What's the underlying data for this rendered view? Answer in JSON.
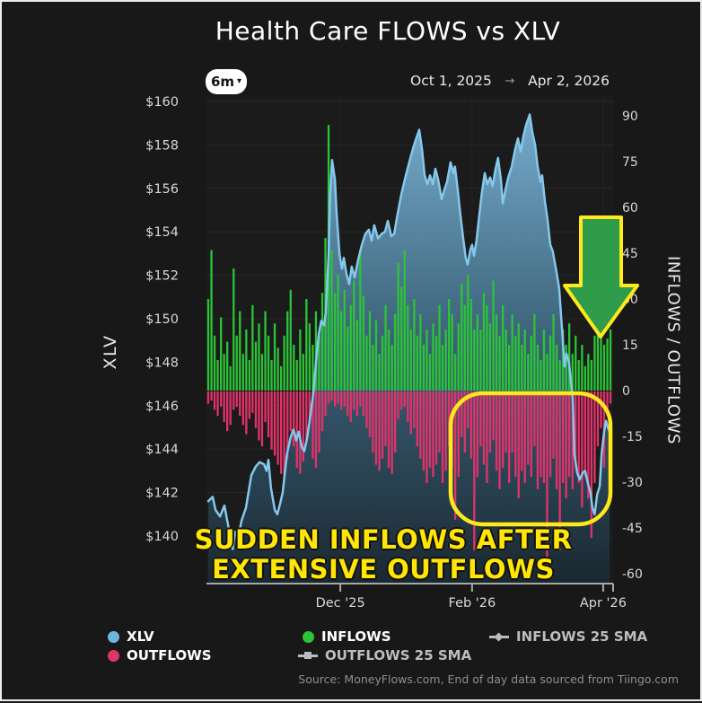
{
  "title": "Health Care FLOWS vs XLV",
  "controls": {
    "range_label": "6m",
    "caret": "▾",
    "date_start": "Oct 1, 2025",
    "date_arrow": "→",
    "date_end": "Apr 2, 2026"
  },
  "chart_data": {
    "type": "combo",
    "title": "Health Care FLOWS vs XLV",
    "x_axis": {
      "start_label": "Oct 1, 2025",
      "end_label": "Apr 2, 2026",
      "n_days": 128,
      "ticks": [
        {
          "label": "Dec '25",
          "day": 41.7
        },
        {
          "label": "Feb '26",
          "day": 83.3
        },
        {
          "label": "Apr '26",
          "day": 124.7
        }
      ]
    },
    "price_axis": {
      "title": "XLV",
      "side": "left",
      "min": 140,
      "max": 160,
      "step": 2,
      "ticks": [
        {
          "label": "$160",
          "value": 160
        },
        {
          "label": "$158",
          "value": 158
        },
        {
          "label": "$156",
          "value": 156
        },
        {
          "label": "$154",
          "value": 154
        },
        {
          "label": "$152",
          "value": 152
        },
        {
          "label": "$150",
          "value": 150
        },
        {
          "label": "$148",
          "value": 148
        },
        {
          "label": "$146",
          "value": 146
        },
        {
          "label": "$144",
          "value": 144
        },
        {
          "label": "$142",
          "value": 142
        },
        {
          "label": "$140",
          "value": 140
        }
      ]
    },
    "flow_axis": {
      "title": "INFLOWS / OUTFLOWS",
      "side": "right",
      "min": -60,
      "max": 90,
      "step": 15,
      "ticks": [
        {
          "label": "90",
          "value": 90
        },
        {
          "label": "75",
          "value": 75
        },
        {
          "label": "60",
          "value": 60
        },
        {
          "label": "45",
          "value": 45
        },
        {
          "label": "30",
          "value": 30
        },
        {
          "label": "15",
          "value": 15
        },
        {
          "label": "0",
          "value": 0
        },
        {
          "label": "-15",
          "value": -15
        },
        {
          "label": "-30",
          "value": -30
        },
        {
          "label": "-45",
          "value": -45
        },
        {
          "label": "-60",
          "value": -60
        }
      ]
    },
    "series": [
      {
        "name": "XLV",
        "type": "area-line",
        "color": "#85c8ec",
        "points": [
          [
            0,
            141.6
          ],
          [
            1.4,
            141.8
          ],
          [
            2.3,
            141.2
          ],
          [
            3.7,
            140.9
          ],
          [
            5.1,
            141.4
          ],
          [
            6,
            140.7
          ],
          [
            7.7,
            139.4
          ],
          [
            8.5,
            140.2
          ],
          [
            9.4,
            139.9
          ],
          [
            10.5,
            140.7
          ],
          [
            11.9,
            141.3
          ],
          [
            13.6,
            142.8
          ],
          [
            15,
            143.2
          ],
          [
            16.2,
            143.4
          ],
          [
            17.6,
            143.3
          ],
          [
            18.4,
            143.0
          ],
          [
            19,
            143.5
          ],
          [
            19.8,
            142.2
          ],
          [
            21,
            141.2
          ],
          [
            21.8,
            141.0
          ],
          [
            22.7,
            141.5
          ],
          [
            23.5,
            142.0
          ],
          [
            24.9,
            143.8
          ],
          [
            26.1,
            144.6
          ],
          [
            26.9,
            144.9
          ],
          [
            27.8,
            144.4
          ],
          [
            28.6,
            144.8
          ],
          [
            29.5,
            144.1
          ],
          [
            30.3,
            143.9
          ],
          [
            31.2,
            144.5
          ],
          [
            32,
            145.3
          ],
          [
            33.2,
            146.6
          ],
          [
            34,
            148.0
          ],
          [
            34.9,
            149.3
          ],
          [
            35.7,
            149.9
          ],
          [
            36.6,
            149.7
          ],
          [
            37.1,
            150.3
          ],
          [
            38,
            153.0
          ],
          [
            38.5,
            155.8
          ],
          [
            39.1,
            157.3
          ],
          [
            40,
            156.4
          ],
          [
            40.5,
            154.9
          ],
          [
            41.4,
            153.0
          ],
          [
            42.2,
            152.3
          ],
          [
            42.8,
            152.8
          ],
          [
            43.6,
            152.1
          ],
          [
            44.5,
            151.6
          ],
          [
            45.3,
            152.4
          ],
          [
            46.2,
            151.9
          ],
          [
            47.3,
            152.7
          ],
          [
            48.5,
            153.4
          ],
          [
            49.6,
            153.9
          ],
          [
            50.7,
            154.1
          ],
          [
            51.6,
            153.6
          ],
          [
            52.4,
            154.3
          ],
          [
            53.6,
            153.7
          ],
          [
            54.7,
            153.9
          ],
          [
            55.8,
            154.0
          ],
          [
            56.7,
            154.5
          ],
          [
            57.8,
            153.8
          ],
          [
            58.7,
            153.9
          ],
          [
            59.5,
            154.6
          ],
          [
            60.9,
            155.7
          ],
          [
            62.4,
            156.6
          ],
          [
            63.8,
            157.4
          ],
          [
            65.2,
            158.1
          ],
          [
            66.6,
            158.7
          ],
          [
            67.5,
            157.8
          ],
          [
            68.3,
            156.6
          ],
          [
            69.2,
            156.2
          ],
          [
            70,
            156.6
          ],
          [
            70.9,
            156.2
          ],
          [
            71.7,
            156.9
          ],
          [
            72.6,
            156.4
          ],
          [
            73.7,
            155.5
          ],
          [
            74.5,
            155.9
          ],
          [
            75.4,
            156.3
          ],
          [
            76.5,
            157.2
          ],
          [
            77.4,
            156.7
          ],
          [
            77.9,
            157.0
          ],
          [
            78.8,
            155.9
          ],
          [
            79.6,
            154.8
          ],
          [
            80.5,
            153.7
          ],
          [
            81.3,
            152.8
          ],
          [
            81.9,
            152.5
          ],
          [
            82.8,
            153.2
          ],
          [
            83.3,
            153.4
          ],
          [
            83.9,
            152.9
          ],
          [
            84.7,
            153.6
          ],
          [
            85.6,
            154.8
          ],
          [
            86.4,
            155.8
          ],
          [
            87.3,
            156.7
          ],
          [
            88.1,
            156.2
          ],
          [
            89,
            156.5
          ],
          [
            89.8,
            156.1
          ],
          [
            90.7,
            156.9
          ],
          [
            91.5,
            157.4
          ],
          [
            92.4,
            156.4
          ],
          [
            93,
            155.3
          ],
          [
            93.8,
            155.9
          ],
          [
            94.7,
            156.5
          ],
          [
            95.8,
            157.0
          ],
          [
            96.9,
            157.8
          ],
          [
            97.8,
            158.3
          ],
          [
            98.6,
            157.7
          ],
          [
            99.5,
            158.4
          ],
          [
            100.3,
            158.9
          ],
          [
            101.5,
            159.4
          ],
          [
            102.3,
            158.6
          ],
          [
            103.2,
            158.0
          ],
          [
            104,
            157.0
          ],
          [
            104.9,
            156.3
          ],
          [
            105.4,
            156.6
          ],
          [
            106.3,
            155.4
          ],
          [
            107.1,
            154.6
          ],
          [
            108,
            153.4
          ],
          [
            108.8,
            153.1
          ],
          [
            110,
            152.1
          ],
          [
            110.8,
            151.4
          ],
          [
            111.7,
            149.5
          ],
          [
            112.5,
            147.8
          ],
          [
            113.1,
            148.4
          ],
          [
            113.9,
            148.0
          ],
          [
            114.5,
            147.1
          ],
          [
            115.1,
            146.3
          ],
          [
            115.6,
            143.8
          ],
          [
            116.5,
            142.9
          ],
          [
            117.3,
            142.6
          ],
          [
            118.2,
            142.9
          ],
          [
            119,
            143.0
          ],
          [
            119.9,
            142.4
          ],
          [
            120.7,
            142.0
          ],
          [
            121.3,
            141.3
          ],
          [
            122,
            141.0
          ],
          [
            122.8,
            141.9
          ],
          [
            123.6,
            142.3
          ],
          [
            124.2,
            143.8
          ],
          [
            125,
            144.8
          ],
          [
            125.6,
            145.3
          ],
          [
            126.2,
            145.0
          ],
          [
            126.7,
            144.8
          ]
        ]
      },
      {
        "name": "INFLOWS",
        "type": "bar",
        "color": "#2bc437",
        "values": [
          30,
          46,
          18,
          10,
          24,
          12,
          16,
          8,
          40,
          18,
          26,
          12,
          20,
          10,
          28,
          16,
          22,
          12,
          26,
          18,
          10,
          22,
          14,
          8,
          18,
          26,
          33,
          15,
          10,
          20,
          12,
          30,
          22,
          15,
          26,
          18,
          32,
          50,
          87,
          46,
          32,
          38,
          26,
          33,
          21,
          28,
          36,
          23,
          46,
          31,
          18,
          26,
          15,
          23,
          12,
          18,
          28,
          20,
          15,
          25,
          42,
          34,
          46,
          28,
          20,
          30,
          18,
          25,
          15,
          20,
          12,
          22,
          18,
          28,
          15,
          20,
          30,
          25,
          12,
          22,
          35,
          28,
          38,
          30,
          20,
          25,
          20,
          32,
          28,
          22,
          36,
          25,
          18,
          28,
          20,
          15,
          25,
          18,
          22,
          15,
          20,
          12,
          18,
          25,
          15,
          10,
          20,
          12,
          18,
          25,
          15,
          10,
          20,
          15,
          22,
          12,
          18,
          10,
          15,
          8,
          12,
          10,
          18,
          25,
          20,
          15,
          17,
          20
        ]
      },
      {
        "name": "OUTFLOWS",
        "type": "bar",
        "color": "#e3326b",
        "values": [
          -4,
          -3,
          -6,
          -8,
          -5,
          -10,
          -13,
          -11,
          -6,
          -5,
          -8,
          -11,
          -14,
          -9,
          -7,
          -12,
          -16,
          -18,
          -10,
          -15,
          -19,
          -21,
          -24,
          -27,
          -28,
          -22,
          -13,
          -18,
          -25,
          -27,
          -23,
          -16,
          -10,
          -22,
          -25,
          -20,
          -13,
          -8,
          -4,
          -3,
          -5,
          -4,
          -6,
          -5,
          -8,
          -10,
          -6,
          -8,
          -5,
          -8,
          -12,
          -15,
          -20,
          -24,
          -26,
          -22,
          -18,
          -25,
          -27,
          -20,
          -9,
          -6,
          -5,
          -10,
          -14,
          -12,
          -18,
          -22,
          -26,
          -30,
          -25,
          -28,
          -24,
          -20,
          -30,
          -26,
          -18,
          -25,
          -42,
          -28,
          -15,
          -20,
          -12,
          -22,
          -52,
          -28,
          -18,
          -24,
          -30,
          -20,
          -16,
          -26,
          -32,
          -25,
          -20,
          -30,
          -20,
          -28,
          -35,
          -26,
          -30,
          -24,
          -28,
          -18,
          -32,
          -28,
          -30,
          -57,
          -28,
          -22,
          -32,
          -52,
          -30,
          -35,
          -28,
          -32,
          -25,
          -30,
          -38,
          -28,
          -35,
          -48,
          -30,
          -18,
          -12,
          -25,
          -8,
          -4
        ]
      }
    ]
  },
  "annotations": {
    "text_line1": "SUDDEN INFLOWS AFTER",
    "text_line2": "EXTENSIVE OUTFLOWS",
    "text_color": "#ffe607",
    "highlight_box": {
      "type": "highlight-box",
      "outline": "#ffe81c",
      "region": "Feb-Apr extensive outflows"
    },
    "arrow": {
      "type": "down-arrow",
      "fill": "#2e9c4b",
      "outline": "#ffe81c"
    }
  },
  "legend": [
    {
      "label": "XLV",
      "marker": "circle",
      "color": "#6cb7e0",
      "active": true,
      "col": 1,
      "row": 1
    },
    {
      "label": "OUTFLOWS",
      "marker": "circle",
      "color": "#e0356b",
      "active": true,
      "col": 1,
      "row": 2
    },
    {
      "label": "INFLOWS",
      "marker": "circle",
      "color": "#2bc437",
      "active": true,
      "col": 2,
      "row": 1
    },
    {
      "label": "OUTFLOWS 25 SMA",
      "marker": "line-square",
      "color": "#b9bdc2",
      "active": false,
      "col": 2,
      "row": 2
    },
    {
      "label": "INFLOWS 25 SMA",
      "marker": "line-diamond",
      "color": "#b9bdc2",
      "active": false,
      "col": 3,
      "row": 1
    }
  ],
  "source": "Source: MoneyFlows.com, End of day data sourced from Tiingo.com"
}
